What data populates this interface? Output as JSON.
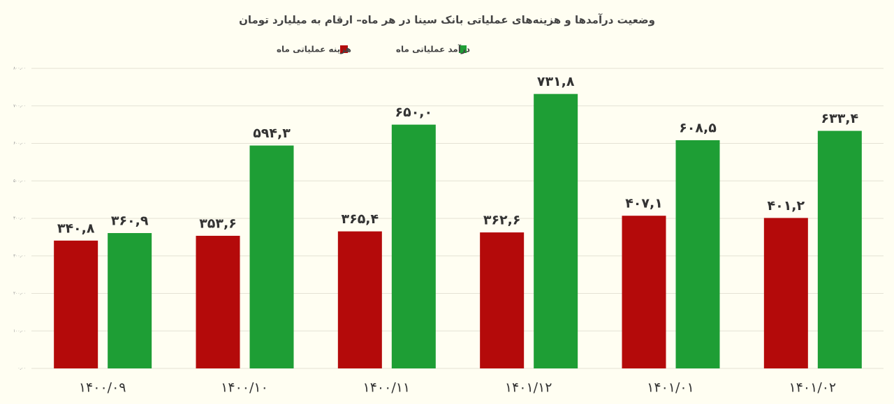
{
  "chart_data": {
    "type": "bar",
    "title": "وضعیت درآمدها و هزینه‌های عملیاتی بانک سینا  در هر ماه– ارقام به میلیارد تومان",
    "categories": [
      "۱۴۰۰/۰۹",
      "۱۴۰۰/۱۰",
      "۱۴۰۰/۱۱",
      "۱۴۰۱/۱۲",
      "۱۴۰۱/۰۱",
      "۱۴۰۱/۰۲"
    ],
    "series": [
      {
        "name": "هزینه عملیاتی ماه",
        "color": "#b40a0a",
        "values": [
          340.8,
          353.6,
          365.4,
          362.6,
          407.1,
          401.2
        ],
        "value_labels": [
          "۳۴۰,۸",
          "۳۵۳,۶",
          "۳۶۵,۴",
          "۳۶۲,۶",
          "۴۰۷,۱",
          "۴۰۱,۲"
        ]
      },
      {
        "name": "درآمد عملیاتی ماه",
        "color": "#1e9e35",
        "values": [
          360.9,
          594.3,
          650.0,
          731.8,
          608.5,
          633.4
        ],
        "value_labels": [
          "۳۶۰,۹",
          "۵۹۴,۳",
          "۶۵۰,۰",
          "۷۳۱,۸",
          "۶۰۸,۵",
          "۶۳۳,۴"
        ]
      }
    ],
    "ylim": [
      0,
      800
    ],
    "yticks": [
      {
        "value": 0,
        "label": "۰٫۰۰"
      },
      {
        "value": 100,
        "label": "۱۰۰٫۰۰"
      },
      {
        "value": 200,
        "label": "۲۰۰٫۰۰"
      },
      {
        "value": 300,
        "label": "۳۰۰٫۰۰"
      },
      {
        "value": 400,
        "label": "۴۰۰٫۰۰"
      },
      {
        "value": 500,
        "label": "۵۰۰٫۰۰"
      },
      {
        "value": 600,
        "label": "۶۰۰٫۰۰"
      },
      {
        "value": 700,
        "label": "۷۰۰٫۰۰"
      },
      {
        "value": 800,
        "label": "۸۰۰٫۰۰"
      }
    ],
    "grid": true
  }
}
